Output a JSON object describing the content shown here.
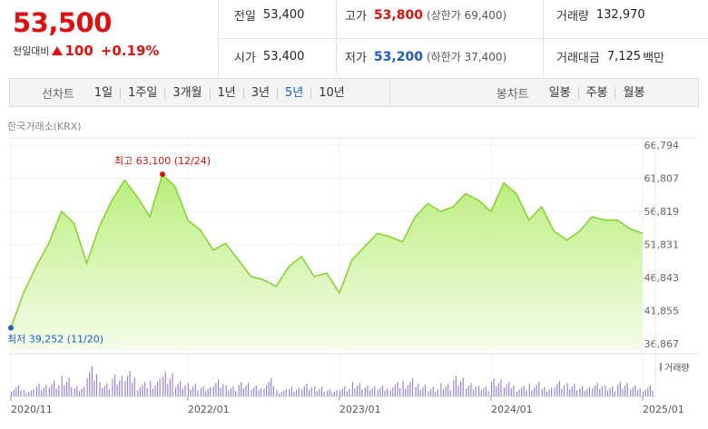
{
  "quote": {
    "price": "53,500",
    "change_label": "전일대비",
    "change_value": "100",
    "change_pct": "+0.19%",
    "prev_close_label": "전일",
    "prev_close": "53,400",
    "open_label": "시가",
    "open": "53,400",
    "high_label": "고가",
    "high": "53,800",
    "upper_limit": "(상한가 69,400)",
    "low_label": "저가",
    "low": "53,200",
    "lower_limit": "(하한가 37,400)",
    "volume_label": "거래량",
    "volume": "132,970",
    "turnover_label": "거래대금",
    "turnover": "7,125",
    "turnover_unit": "백만"
  },
  "tabs": {
    "line_title": "선차트",
    "line_items": [
      "1일",
      "1주일",
      "3개월",
      "1년",
      "3년",
      "5년",
      "10년"
    ],
    "line_active": "5년",
    "candle_title": "봉차트",
    "candle_items": [
      "일봉",
      "주봉",
      "월봉"
    ]
  },
  "exchange": "한국거래소(KRX)",
  "colors": {
    "up": "#dd1111",
    "down": "#1a5ec2",
    "line": "#7fd42a",
    "volume": "#9a86d8"
  },
  "chart_data": {
    "type": "area",
    "y_ticks": [
      "66,794",
      "61,807",
      "56,819",
      "51,831",
      "46,843",
      "41,855",
      "36,867"
    ],
    "y_tick_values": [
      66794,
      61807,
      56819,
      51831,
      46843,
      41855,
      36867
    ],
    "ylim": [
      36867,
      66794
    ],
    "x_ticks": [
      "2020/11",
      "2022/01",
      "2023/01",
      "2024/01",
      "2025/01"
    ],
    "x_tick_index": [
      0,
      14,
      26,
      38,
      50
    ],
    "max_label": "최고 63,100 (12/24)",
    "max_value": 63100,
    "min_label": "최저 39,252 (11/20)",
    "min_value": 39252,
    "volume_legend": "거래량",
    "series": [
      {
        "values": [
          39252,
          44500,
          48500,
          52000,
          56800,
          55000,
          49000,
          54500,
          58500,
          61500,
          59000,
          56000,
          62400,
          60500,
          55500,
          54000,
          51000,
          52000,
          49500,
          47000,
          46500,
          45500,
          48500,
          50000,
          47000,
          47500,
          44500,
          49500,
          51500,
          53500,
          53000,
          52200,
          56000,
          58000,
          56800,
          57500,
          59500,
          58500,
          56800,
          61100,
          59500,
          55500,
          57500,
          53800,
          52500,
          53800,
          56000,
          55500,
          55500,
          54200,
          53500
        ]
      }
    ],
    "volume": [
      3,
      2,
      4,
      5,
      6,
      3,
      9,
      4,
      6,
      7,
      4,
      5,
      8,
      5,
      4,
      3,
      5,
      3,
      4,
      3,
      5,
      2,
      3,
      4,
      3,
      2,
      3,
      4,
      3,
      3,
      4,
      5,
      4,
      3,
      4,
      6,
      4,
      3,
      5,
      4,
      3,
      4,
      3,
      5,
      4,
      3,
      4,
      3,
      4,
      3,
      3
    ]
  }
}
